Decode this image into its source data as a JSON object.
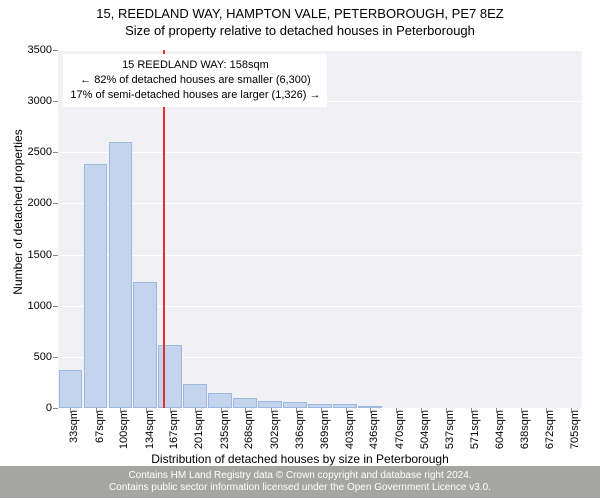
{
  "title": "15, REEDLAND WAY, HAMPTON VALE, PETERBOROUGH, PE7 8EZ",
  "subtitle": "Size of property relative to detached houses in Peterborough",
  "chart": {
    "type": "bar",
    "background_color": "#f0f0f5",
    "grid_color": "#ffffff",
    "bar_fill": "#c5d4ee",
    "bar_border": "#9db8df",
    "refline_color": "#e13030",
    "refline_x": 158,
    "ylabel": "Number of detached properties",
    "xlabel": "Distribution of detached houses by size in Peterborough",
    "ylim": [
      0,
      3500
    ],
    "yticks": [
      0,
      500,
      1000,
      1500,
      2000,
      2500,
      3000,
      3500
    ],
    "x_start": 16.5,
    "x_bin_width": 33.5,
    "xticks": [
      33,
      67,
      100,
      134,
      167,
      201,
      235,
      268,
      302,
      336,
      369,
      403,
      436,
      470,
      504,
      537,
      571,
      604,
      638,
      672,
      705
    ],
    "xticklabels": [
      "33sqm",
      "67sqm",
      "100sqm",
      "134sqm",
      "167sqm",
      "201sqm",
      "235sqm",
      "268sqm",
      "302sqm",
      "336sqm",
      "369sqm",
      "403sqm",
      "436sqm",
      "470sqm",
      "504sqm",
      "537sqm",
      "571sqm",
      "604sqm",
      "638sqm",
      "672sqm",
      "705sqm"
    ],
    "values": [
      370,
      2390,
      2600,
      1230,
      620,
      230,
      150,
      100,
      70,
      60,
      40,
      40,
      20,
      0,
      0,
      0,
      0,
      0,
      0,
      0,
      0
    ],
    "bar_width_ratio": 0.95
  },
  "annotation": {
    "line1": "15 REEDLAND WAY: 158sqm",
    "line2": "← 82% of detached houses are smaller (6,300)",
    "line3": "17% of semi-detached houses are larger (1,326) →"
  },
  "footer": {
    "line1": "Contains HM Land Registry data © Crown copyright and database right 2024.",
    "line2": "Contains public sector information licensed under the Open Government Licence v3.0."
  }
}
